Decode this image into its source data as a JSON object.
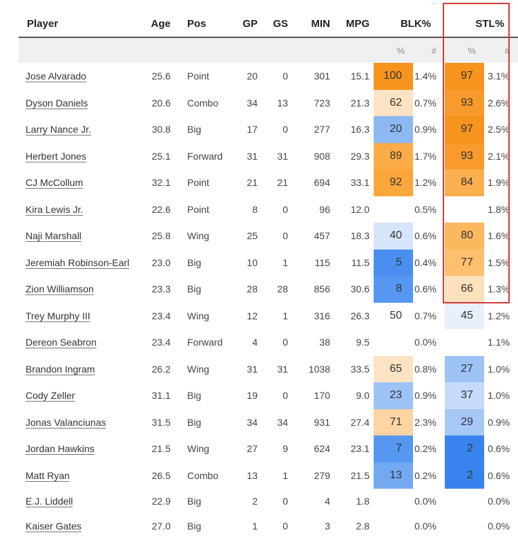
{
  "columns": {
    "player": "Player",
    "age": "Age",
    "pos": "Pos",
    "gp": "GP",
    "gs": "GS",
    "min": "MIN",
    "mpg": "MPG",
    "blk": "BLK%",
    "stl": "STL%",
    "pct": "%",
    "num": "#"
  },
  "colors": {
    "orange_strong": "#f7941d",
    "orange_mid": "#fbb04f",
    "orange_light": "#fde3c4",
    "blue_strong": "#4a8ff0",
    "blue_mid": "#8db8f3",
    "blue_light": "#d6e5fb",
    "highlight": "#d23a3a"
  },
  "rows": [
    {
      "player": "Jose Alvarado",
      "age": "25.6",
      "pos": "Point",
      "gp": "20",
      "gs": "0",
      "min": "301",
      "mpg": "15.1",
      "blk_pct": "100",
      "blk_num": "1.4%",
      "stl_pct": "97",
      "stl_num": "3.1%",
      "blk_color": "#f7941d",
      "stl_color": "#f7941d"
    },
    {
      "player": "Dyson Daniels",
      "age": "20.6",
      "pos": "Combo",
      "gp": "34",
      "gs": "13",
      "min": "723",
      "mpg": "21.3",
      "blk_pct": "62",
      "blk_num": "0.7%",
      "stl_pct": "93",
      "stl_num": "2.6%",
      "blk_color": "#fde3c4",
      "stl_color": "#f89b2c"
    },
    {
      "player": "Larry Nance Jr.",
      "age": "30.8",
      "pos": "Big",
      "gp": "17",
      "gs": "0",
      "min": "277",
      "mpg": "16.3",
      "blk_pct": "20",
      "blk_num": "0.9%",
      "stl_pct": "97",
      "stl_num": "2.5%",
      "blk_color": "#8db8f3",
      "stl_color": "#f7941d"
    },
    {
      "player": "Herbert Jones",
      "age": "25.1",
      "pos": "Forward",
      "gp": "31",
      "gs": "31",
      "min": "908",
      "mpg": "29.3",
      "blk_pct": "89",
      "blk_num": "1.7%",
      "stl_pct": "93",
      "stl_num": "2.1%",
      "blk_color": "#fbac47",
      "stl_color": "#f89b2c"
    },
    {
      "player": "CJ McCollum",
      "age": "32.1",
      "pos": "Point",
      "gp": "21",
      "gs": "21",
      "min": "694",
      "mpg": "33.1",
      "blk_pct": "92",
      "blk_num": "1.2%",
      "stl_pct": "84",
      "stl_num": "1.9%",
      "blk_color": "#faa63b",
      "stl_color": "#fbb04f"
    },
    {
      "player": "Kira Lewis Jr.",
      "age": "22.6",
      "pos": "Point",
      "gp": "8",
      "gs": "0",
      "min": "96",
      "mpg": "12.0",
      "blk_pct": "",
      "blk_num": "0.5%",
      "stl_pct": "",
      "stl_num": "1.8%",
      "blk_color": "",
      "stl_color": ""
    },
    {
      "player": "Naji Marshall",
      "age": "25.8",
      "pos": "Wing",
      "gp": "25",
      "gs": "0",
      "min": "457",
      "mpg": "18.3",
      "blk_pct": "40",
      "blk_num": "0.6%",
      "stl_pct": "80",
      "stl_num": "1.6%",
      "blk_color": "#d6e5fb",
      "stl_color": "#fbb85f"
    },
    {
      "player": "Jeremiah Robinson-Earl",
      "age": "23.0",
      "pos": "Big",
      "gp": "10",
      "gs": "1",
      "min": "115",
      "mpg": "11.5",
      "blk_pct": "5",
      "blk_num": "0.4%",
      "stl_pct": "77",
      "stl_num": "1.5%",
      "blk_color": "#4a8ff0",
      "stl_color": "#fcc06f"
    },
    {
      "player": "Zion Williamson",
      "age": "23.3",
      "pos": "Big",
      "gp": "28",
      "gs": "28",
      "min": "856",
      "mpg": "30.6",
      "blk_pct": "8",
      "blk_num": "0.6%",
      "stl_pct": "66",
      "stl_num": "1.3%",
      "blk_color": "#5597f1",
      "stl_color": "#fde0bc"
    },
    {
      "player": "Trey Murphy III",
      "age": "23.4",
      "pos": "Wing",
      "gp": "12",
      "gs": "1",
      "min": "316",
      "mpg": "26.3",
      "blk_pct": "50",
      "blk_num": "0.7%",
      "stl_pct": "45",
      "stl_num": "1.2%",
      "blk_color": "#ffffff",
      "stl_color": "#e8f0fc"
    },
    {
      "player": "Dereon Seabron",
      "age": "23.4",
      "pos": "Forward",
      "gp": "4",
      "gs": "0",
      "min": "38",
      "mpg": "9.5",
      "blk_pct": "",
      "blk_num": "0.0%",
      "stl_pct": "",
      "stl_num": "1.1%",
      "blk_color": "",
      "stl_color": ""
    },
    {
      "player": "Brandon Ingram",
      "age": "26.2",
      "pos": "Wing",
      "gp": "31",
      "gs": "31",
      "min": "1038",
      "mpg": "33.5",
      "blk_pct": "65",
      "blk_num": "0.8%",
      "stl_pct": "27",
      "stl_num": "1.0%",
      "blk_color": "#fde3c4",
      "stl_color": "#9dc2f5"
    },
    {
      "player": "Cody Zeller",
      "age": "31.1",
      "pos": "Big",
      "gp": "19",
      "gs": "0",
      "min": "170",
      "mpg": "9.0",
      "blk_pct": "23",
      "blk_num": "0.9%",
      "stl_pct": "37",
      "stl_num": "1.0%",
      "blk_color": "#9dc2f5",
      "stl_color": "#c5dbf9"
    },
    {
      "player": "Jonas Valanciunas",
      "age": "31.5",
      "pos": "Big",
      "gp": "34",
      "gs": "34",
      "min": "931",
      "mpg": "27.4",
      "blk_pct": "71",
      "blk_num": "2.3%",
      "stl_pct": "29",
      "stl_num": "0.9%",
      "blk_color": "#fdd4a2",
      "stl_color": "#a6c8f6"
    },
    {
      "player": "Jordan Hawkins",
      "age": "21.5",
      "pos": "Wing",
      "gp": "27",
      "gs": "9",
      "min": "624",
      "mpg": "23.1",
      "blk_pct": "7",
      "blk_num": "0.2%",
      "stl_pct": "2",
      "stl_num": "0.6%",
      "blk_color": "#5597f1",
      "stl_color": "#3883ee"
    },
    {
      "player": "Matt Ryan",
      "age": "26.5",
      "pos": "Combo",
      "gp": "13",
      "gs": "1",
      "min": "279",
      "mpg": "21.5",
      "blk_pct": "13",
      "blk_num": "0.2%",
      "stl_pct": "2",
      "stl_num": "0.6%",
      "blk_color": "#73a9f2",
      "stl_color": "#3883ee"
    },
    {
      "player": "E.J. Liddell",
      "age": "22.9",
      "pos": "Big",
      "gp": "2",
      "gs": "0",
      "min": "4",
      "mpg": "1.8",
      "blk_pct": "",
      "blk_num": "0.0%",
      "stl_pct": "",
      "stl_num": "0.0%",
      "blk_color": "",
      "stl_color": ""
    },
    {
      "player": "Kaiser Gates",
      "age": "27.0",
      "pos": "Big",
      "gp": "1",
      "gs": "0",
      "min": "3",
      "mpg": "2.8",
      "blk_pct": "",
      "blk_num": "0.0%",
      "stl_pct": "",
      "stl_num": "0.0%",
      "blk_color": "",
      "stl_color": ""
    }
  ]
}
